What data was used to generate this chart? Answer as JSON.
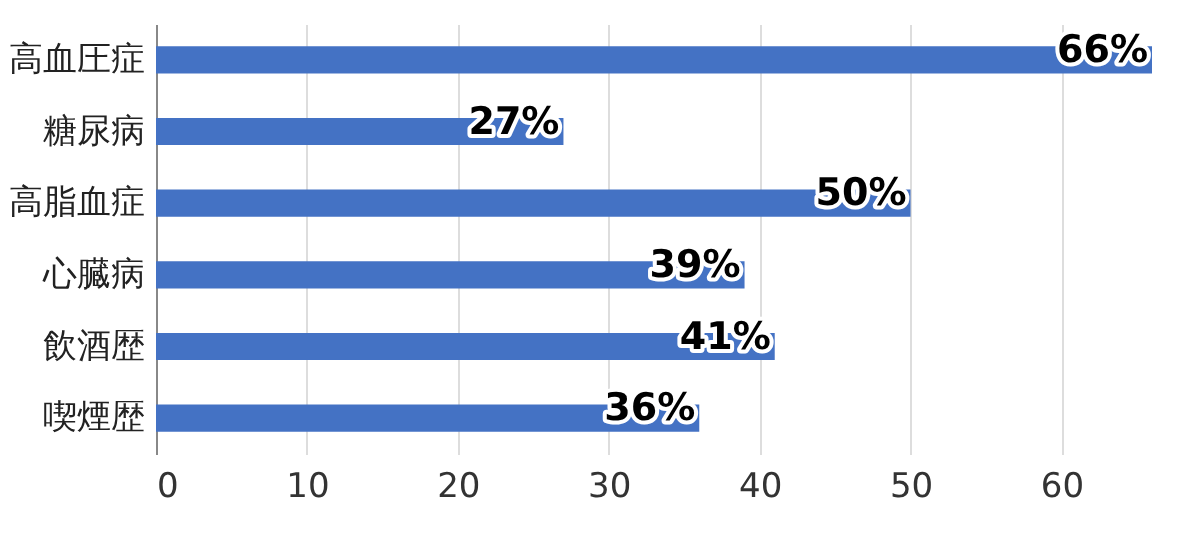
{
  "chart_data": {
    "type": "bar",
    "orientation": "horizontal",
    "categories": [
      "高血圧症",
      "糖尿病",
      "高脂血症",
      "心臓病",
      "飲酒歴",
      "喫煙歴"
    ],
    "values": [
      66,
      27,
      50,
      39,
      41,
      36
    ],
    "value_labels": [
      "66%",
      "27%",
      "50%",
      "39%",
      "41%",
      "36%"
    ],
    "color": "#4472c4",
    "xlim": [
      0,
      66
    ],
    "xticks": [
      0,
      10,
      20,
      30,
      40,
      50,
      60
    ],
    "grid": "x"
  }
}
